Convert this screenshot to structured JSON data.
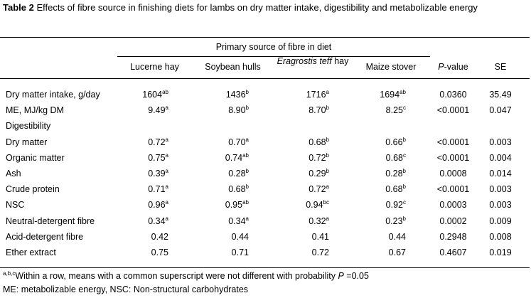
{
  "title": {
    "label": "Table 2",
    "text": " Effects of fibre source in finishing diets for lambs on dry matter intake, digestibility and metabolizable energy"
  },
  "table": {
    "group_header": "Primary source of fibre in diet",
    "columns": [
      {
        "text": "Lucerne hay"
      },
      {
        "text": "Soybean hulls"
      },
      {
        "italic": "Eragrostis teff",
        "text": " hay"
      },
      {
        "text": "Maize stover"
      },
      {
        "italic": "P",
        "text": "-value"
      },
      {
        "text": "SE"
      }
    ],
    "rows": [
      {
        "label": "Dry matter intake, g/day",
        "cells": [
          {
            "v": "1604",
            "s": "ab"
          },
          {
            "v": "1436",
            "s": "b"
          },
          {
            "v": "1716",
            "s": "a"
          },
          {
            "v": "1694",
            "s": "ab"
          }
        ],
        "p": "0.0360",
        "se": "35.49"
      },
      {
        "label": "ME, MJ/kg DM",
        "cells": [
          {
            "v": "9.49",
            "s": "a"
          },
          {
            "v": "8.90",
            "s": "b"
          },
          {
            "v": "8.70",
            "s": "b"
          },
          {
            "v": "8.25",
            "s": "c"
          }
        ],
        "p": "<0.0001",
        "se": "0.047"
      },
      {
        "label": "Digestibility"
      },
      {
        "label": "Dry matter",
        "cells": [
          {
            "v": "0.72",
            "s": "a"
          },
          {
            "v": "0.70",
            "s": "a"
          },
          {
            "v": "0.68",
            "s": "b"
          },
          {
            "v": "0.66",
            "s": "b"
          }
        ],
        "p": "<0.0001",
        "se": "0.003"
      },
      {
        "label": "Organic matter",
        "cells": [
          {
            "v": "0.75",
            "s": "a"
          },
          {
            "v": "0.74",
            "s": "ab"
          },
          {
            "v": "0.72",
            "s": "b"
          },
          {
            "v": "0.68",
            "s": "c"
          }
        ],
        "p": "<0.0001",
        "se": "0.004"
      },
      {
        "label": "Ash",
        "cells": [
          {
            "v": "0.39",
            "s": "a"
          },
          {
            "v": "0.28",
            "s": "b"
          },
          {
            "v": "0.29",
            "s": "b"
          },
          {
            "v": "0.28",
            "s": "b"
          }
        ],
        "p": "0.0008",
        "se": "0.014"
      },
      {
        "label": "Crude protein",
        "cells": [
          {
            "v": "0.71",
            "s": "a"
          },
          {
            "v": "0.68",
            "s": "b"
          },
          {
            "v": "0.72",
            "s": "a"
          },
          {
            "v": "0.68",
            "s": "b"
          }
        ],
        "p": "<0.0001",
        "se": "0.003"
      },
      {
        "label": "NSC",
        "cells": [
          {
            "v": "0.96",
            "s": "a"
          },
          {
            "v": "0.95",
            "s": "ab"
          },
          {
            "v": "0.94",
            "s": "bc"
          },
          {
            "v": "0.92",
            "s": "c"
          }
        ],
        "p": "0.0003",
        "se": "0.003"
      },
      {
        "label": "Neutral-detergent fibre",
        "cells": [
          {
            "v": "0.34",
            "s": "a"
          },
          {
            "v": "0.34",
            "s": "a"
          },
          {
            "v": "0.32",
            "s": "a"
          },
          {
            "v": "0.23",
            "s": "b"
          }
        ],
        "p": "0.0002",
        "se": "0.009"
      },
      {
        "label": "Acid-detergent fibre",
        "cells": [
          {
            "v": "0.42"
          },
          {
            "v": "0.44"
          },
          {
            "v": "0.41"
          },
          {
            "v": "0.44"
          }
        ],
        "p": "0.2948",
        "se": "0.008"
      },
      {
        "label": "Ether extract",
        "cells": [
          {
            "v": "0.75"
          },
          {
            "v": "0.71"
          },
          {
            "v": "0.72"
          },
          {
            "v": "0.67"
          }
        ],
        "p": "0.4607",
        "se": "0.019"
      }
    ]
  },
  "footnotes": [
    {
      "sup": "a,b,c",
      "text": "Within a row, means with a common superscript were not different with probability ",
      "italic": "P",
      "tail": " =0.05"
    },
    {
      "text": "ME: metabolizable energy, NSC: Non-structural carbohydrates"
    }
  ]
}
